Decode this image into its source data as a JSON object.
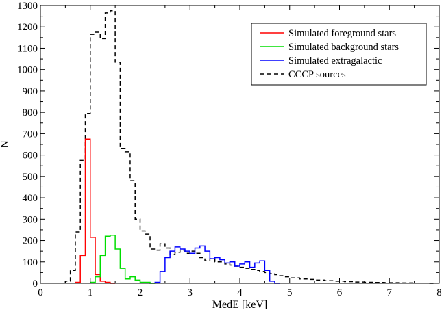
{
  "chart_data": {
    "type": "line",
    "title": "",
    "xlabel": "MedE [keV]",
    "ylabel": "N",
    "xlim": [
      0,
      8
    ],
    "ylim": [
      0,
      1300
    ],
    "xticks": [
      0,
      1,
      2,
      3,
      4,
      5,
      6,
      7,
      8
    ],
    "yticks": [
      0,
      100,
      200,
      300,
      400,
      500,
      600,
      700,
      800,
      900,
      1000,
      1100,
      1200,
      1300
    ],
    "bin_width": 0.1,
    "grid": false,
    "legend_position": "top-right",
    "series": [
      {
        "name": "Simulated foreground stars",
        "color": "#ff0000",
        "dash": "solid",
        "x": [
          0.7,
          0.8,
          0.9,
          1.0,
          1.1,
          1.2,
          1.3,
          1.4
        ],
        "values": [
          5,
          130,
          675,
          215,
          40,
          10,
          5,
          0
        ]
      },
      {
        "name": "Simulated background stars",
        "color": "#00dd00",
        "dash": "solid",
        "x": [
          1.0,
          1.1,
          1.2,
          1.3,
          1.4,
          1.5,
          1.6,
          1.7,
          1.8,
          1.9,
          2.0,
          2.1,
          2.2
        ],
        "values": [
          5,
          30,
          130,
          220,
          225,
          160,
          70,
          20,
          30,
          15,
          5,
          5,
          0
        ]
      },
      {
        "name": "Simulated extragalactic",
        "color": "#0000ff",
        "dash": "solid",
        "x": [
          2.3,
          2.4,
          2.5,
          2.6,
          2.7,
          2.8,
          2.9,
          3.0,
          3.1,
          3.2,
          3.3,
          3.4,
          3.5,
          3.6,
          3.7,
          3.8,
          3.9,
          4.0,
          4.1,
          4.2,
          4.3,
          4.4,
          4.5,
          4.6,
          4.7
        ],
        "values": [
          5,
          55,
          120,
          150,
          170,
          160,
          150,
          140,
          165,
          175,
          150,
          115,
          120,
          110,
          95,
          100,
          80,
          90,
          100,
          75,
          95,
          105,
          60,
          10,
          0
        ]
      },
      {
        "name": "CCCP sources",
        "color": "#000000",
        "dash": "dashed",
        "x": [
          0.5,
          0.6,
          0.7,
          0.8,
          0.9,
          1.0,
          1.1,
          1.2,
          1.3,
          1.4,
          1.5,
          1.6,
          1.7,
          1.8,
          1.9,
          2.0,
          2.1,
          2.2,
          2.3,
          2.4,
          2.5,
          2.6,
          2.7,
          2.8,
          2.9,
          3.0,
          3.1,
          3.2,
          3.3,
          3.4,
          3.5,
          3.6,
          3.7,
          3.8,
          3.9,
          4.0,
          4.1,
          4.2,
          4.3,
          4.4,
          4.5,
          4.6,
          4.7,
          4.8,
          4.9,
          5.0,
          5.1,
          5.2,
          5.3,
          5.4,
          5.5,
          5.6,
          5.7,
          5.8,
          5.9,
          6.0,
          6.1,
          6.2,
          6.3,
          6.4,
          6.5,
          6.6,
          6.7,
          6.8,
          6.9,
          7.0,
          7.1,
          7.2,
          7.3,
          7.4,
          7.5,
          7.6,
          7.7,
          7.8
        ],
        "values": [
          10,
          60,
          240,
          575,
          795,
          1165,
          1175,
          1145,
          1265,
          1275,
          1035,
          630,
          615,
          480,
          300,
          245,
          230,
          160,
          155,
          185,
          165,
          135,
          145,
          155,
          140,
          150,
          140,
          120,
          105,
          115,
          100,
          100,
          90,
          85,
          80,
          75,
          70,
          65,
          60,
          55,
          50,
          45,
          40,
          35,
          30,
          25,
          25,
          20,
          20,
          18,
          15,
          15,
          12,
          12,
          10,
          10,
          8,
          8,
          6,
          6,
          5,
          5,
          4,
          4,
          3,
          3,
          3,
          2,
          2,
          2,
          1,
          1,
          1,
          0
        ]
      }
    ]
  }
}
